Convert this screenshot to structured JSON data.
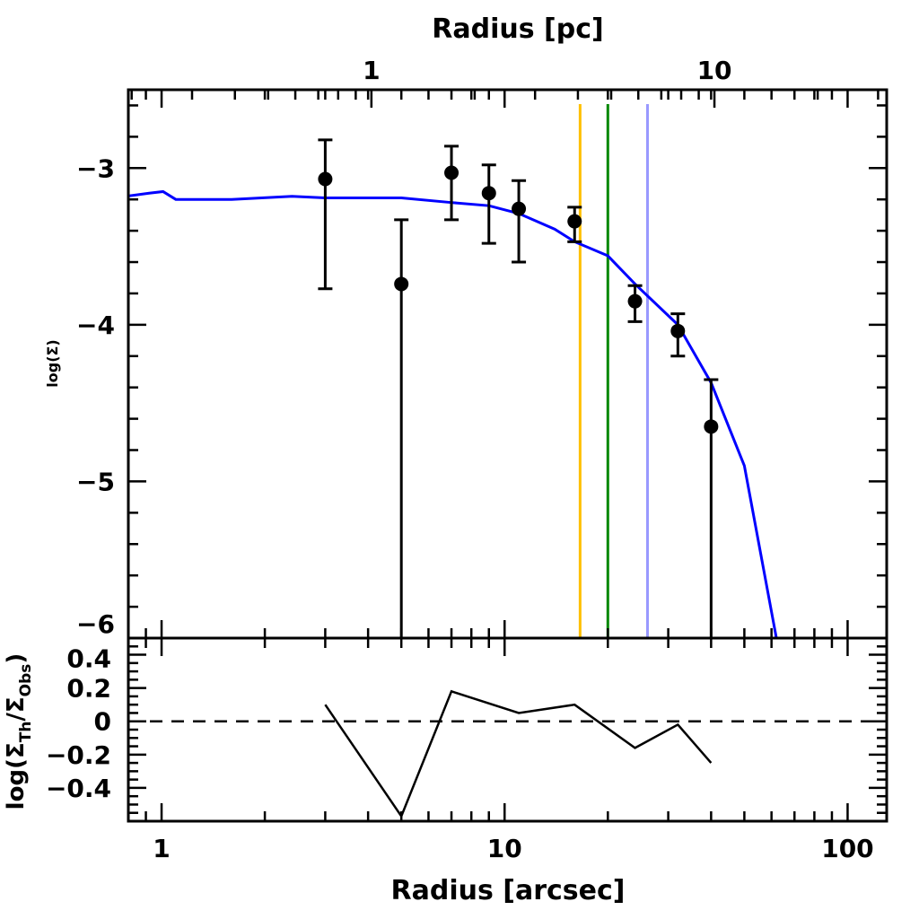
{
  "chart_data": [
    {
      "panel": "top",
      "type": "scatter",
      "xlabel_top": "Radius [pc]",
      "ylabel": "log(Σ)",
      "xscale": "log",
      "xlim": [
        0.8,
        130
      ],
      "ylim": [
        -6,
        -2.5
      ],
      "yticks": [
        "-3",
        "-4",
        "-5",
        "-6"
      ],
      "ytick_values": [
        -3,
        -4,
        -5,
        -6
      ],
      "top_axis": {
        "ticks": [
          "1",
          "10"
        ],
        "tick_values_pc": [
          1,
          10
        ],
        "arcsec_per_pc": 4.09
      },
      "grid": false,
      "points": {
        "x": [
          3,
          5,
          7,
          9,
          11,
          16,
          24,
          32,
          40
        ],
        "y": [
          -3.07,
          -3.74,
          -3.03,
          -3.16,
          -3.26,
          -3.34,
          -3.85,
          -4.04,
          -4.65
        ],
        "err_hi": [
          -2.82,
          -3.33,
          -2.86,
          -2.98,
          -3.08,
          -3.25,
          -3.75,
          -3.93,
          -4.35
        ],
        "err_lo": [
          -3.77,
          -6.5,
          -3.33,
          -3.48,
          -3.6,
          -3.47,
          -3.98,
          -4.2,
          -6.5
        ],
        "color": "#000000"
      },
      "model_curve": {
        "color": "#0000ff",
        "x": [
          0.79,
          0.92,
          1.01,
          1.1,
          1.6,
          2.4,
          3,
          5,
          7,
          9,
          11,
          14,
          16,
          20,
          24,
          32,
          40,
          50,
          62
        ],
        "y": [
          -3.18,
          -3.16,
          -3.15,
          -3.2,
          -3.2,
          -3.18,
          -3.19,
          -3.19,
          -3.22,
          -3.24,
          -3.29,
          -3.39,
          -3.47,
          -3.56,
          -3.74,
          -4.0,
          -4.37,
          -4.9,
          -6.0
        ]
      },
      "vertical_lines": [
        {
          "x": 16.6,
          "color": "#ffc000"
        },
        {
          "x": 20.0,
          "color": "#008800"
        },
        {
          "x": 26.1,
          "color": "#9999ff"
        }
      ]
    },
    {
      "panel": "bottom",
      "type": "line",
      "xlabel": "Radius [arcsec]",
      "ylabel": "log(Σ_Th/Σ_Obs)",
      "ylabel_main": "log(Σ",
      "ylabel_sub1": "Th",
      "ylabel_mid": "/Σ",
      "ylabel_sub2": "Obs",
      "ylabel_end": ")",
      "xscale": "log",
      "xlim": [
        0.8,
        130
      ],
      "ylim": [
        -0.6,
        0.5
      ],
      "xticks": [
        "1",
        "10",
        "100"
      ],
      "xtick_values": [
        1,
        10,
        100
      ],
      "yticks": [
        "0.4",
        "0.2",
        "0",
        "−0.2",
        "−0.4"
      ],
      "ytick_values": [
        0.4,
        0.2,
        0,
        -0.2,
        -0.4
      ],
      "x": [
        3,
        5,
        7,
        11,
        16,
        24,
        32,
        40
      ],
      "y": [
        0.1,
        -0.57,
        0.18,
        0.05,
        0.1,
        -0.16,
        -0.02,
        -0.25
      ],
      "reference_line": {
        "y": 0,
        "style": "dashed"
      }
    }
  ]
}
